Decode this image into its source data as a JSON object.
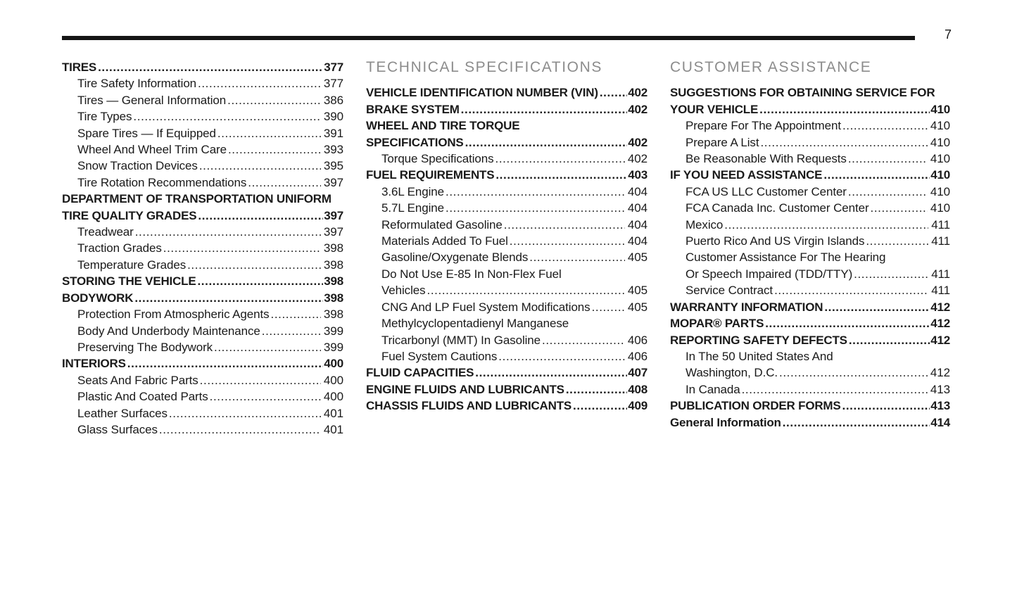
{
  "page": {
    "number": "7",
    "colors": {
      "text": "#1a1a1a",
      "rule": "#151515",
      "heading": "#8c8c8c",
      "background": "#ffffff"
    }
  },
  "columns": [
    {
      "heading": null,
      "entries": [
        {
          "lines": [
            "TIRES"
          ],
          "page": "377",
          "bold": true,
          "indent": 0
        },
        {
          "lines": [
            "Tire Safety Information"
          ],
          "page": "377",
          "bold": false,
          "indent": 1
        },
        {
          "lines": [
            "Tires — General Information"
          ],
          "page": "386",
          "bold": false,
          "indent": 1
        },
        {
          "lines": [
            "Tire Types"
          ],
          "page": "390",
          "bold": false,
          "indent": 1
        },
        {
          "lines": [
            "Spare Tires — If Equipped"
          ],
          "page": "391",
          "bold": false,
          "indent": 1
        },
        {
          "lines": [
            "Wheel And Wheel Trim Care"
          ],
          "page": "393",
          "bold": false,
          "indent": 1
        },
        {
          "lines": [
            "Snow Traction Devices"
          ],
          "page": "395",
          "bold": false,
          "indent": 1
        },
        {
          "lines": [
            "Tire Rotation Recommendations"
          ],
          "page": "397",
          "bold": false,
          "indent": 1
        },
        {
          "lines": [
            "DEPARTMENT OF TRANSPORTATION UNIFORM",
            "TIRE QUALITY GRADES"
          ],
          "page": "397",
          "bold": true,
          "indent": 0
        },
        {
          "lines": [
            "Treadwear"
          ],
          "page": "397",
          "bold": false,
          "indent": 1
        },
        {
          "lines": [
            "Traction Grades"
          ],
          "page": "398",
          "bold": false,
          "indent": 1
        },
        {
          "lines": [
            "Temperature Grades"
          ],
          "page": "398",
          "bold": false,
          "indent": 1
        },
        {
          "lines": [
            "STORING THE VEHICLE"
          ],
          "page": "398",
          "bold": true,
          "indent": 0
        },
        {
          "lines": [
            "BODYWORK"
          ],
          "page": "398",
          "bold": true,
          "indent": 0
        },
        {
          "lines": [
            "Protection From Atmospheric Agents"
          ],
          "page": "398",
          "bold": false,
          "indent": 1
        },
        {
          "lines": [
            "Body And Underbody Maintenance"
          ],
          "page": "399",
          "bold": false,
          "indent": 1
        },
        {
          "lines": [
            "Preserving The Bodywork"
          ],
          "page": "399",
          "bold": false,
          "indent": 1
        },
        {
          "lines": [
            "INTERIORS"
          ],
          "page": "400",
          "bold": true,
          "indent": 0
        },
        {
          "lines": [
            "Seats And Fabric Parts"
          ],
          "page": "400",
          "bold": false,
          "indent": 1
        },
        {
          "lines": [
            "Plastic And Coated Parts"
          ],
          "page": "400",
          "bold": false,
          "indent": 1
        },
        {
          "lines": [
            "Leather Surfaces"
          ],
          "page": "401",
          "bold": false,
          "indent": 1
        },
        {
          "lines": [
            "Glass Surfaces"
          ],
          "page": "401",
          "bold": false,
          "indent": 1
        }
      ]
    },
    {
      "heading": "TECHNICAL SPECIFICATIONS",
      "entries": [
        {
          "lines": [
            "VEHICLE IDENTIFICATION NUMBER (VIN)"
          ],
          "page": "402",
          "bold": true,
          "indent": 0
        },
        {
          "lines": [
            "BRAKE SYSTEM"
          ],
          "page": "402",
          "bold": true,
          "indent": 0
        },
        {
          "lines": [
            "WHEEL AND TIRE TORQUE",
            "SPECIFICATIONS"
          ],
          "page": "402",
          "bold": true,
          "indent": 0
        },
        {
          "lines": [
            "Torque Specifications"
          ],
          "page": "402",
          "bold": false,
          "indent": 1
        },
        {
          "lines": [
            "FUEL REQUIREMENTS"
          ],
          "page": "403",
          "bold": true,
          "indent": 0
        },
        {
          "lines": [
            "3.6L Engine"
          ],
          "page": "404",
          "bold": false,
          "indent": 1
        },
        {
          "lines": [
            "5.7L Engine"
          ],
          "page": "404",
          "bold": false,
          "indent": 1
        },
        {
          "lines": [
            "Reformulated Gasoline"
          ],
          "page": "404",
          "bold": false,
          "indent": 1
        },
        {
          "lines": [
            "Materials Added To Fuel"
          ],
          "page": "404",
          "bold": false,
          "indent": 1
        },
        {
          "lines": [
            "Gasoline/Oxygenate Blends"
          ],
          "page": "405",
          "bold": false,
          "indent": 1
        },
        {
          "lines": [
            "Do Not Use E-85 In Non-Flex Fuel",
            "Vehicles"
          ],
          "page": "405",
          "bold": false,
          "indent": 1
        },
        {
          "lines": [
            "CNG And LP Fuel System Modifications"
          ],
          "page": "405",
          "bold": false,
          "indent": 1
        },
        {
          "lines": [
            "Methylcyclopentadienyl Manganese",
            "Tricarbonyl (MMT) In Gasoline"
          ],
          "page": "406",
          "bold": false,
          "indent": 1
        },
        {
          "lines": [
            "Fuel System Cautions"
          ],
          "page": "406",
          "bold": false,
          "indent": 1
        },
        {
          "lines": [
            "FLUID CAPACITIES"
          ],
          "page": "407",
          "bold": true,
          "indent": 0
        },
        {
          "lines": [
            "ENGINE FLUIDS AND LUBRICANTS"
          ],
          "page": "408",
          "bold": true,
          "indent": 0
        },
        {
          "lines": [
            "CHASSIS FLUIDS AND LUBRICANTS"
          ],
          "page": "409",
          "bold": true,
          "indent": 0
        }
      ]
    },
    {
      "heading": "CUSTOMER ASSISTANCE",
      "entries": [
        {
          "lines": [
            "SUGGESTIONS FOR OBTAINING SERVICE FOR",
            "YOUR VEHICLE"
          ],
          "page": "410",
          "bold": true,
          "indent": 0
        },
        {
          "lines": [
            "Prepare For The Appointment"
          ],
          "page": "410",
          "bold": false,
          "indent": 1
        },
        {
          "lines": [
            "Prepare A List"
          ],
          "page": "410",
          "bold": false,
          "indent": 1
        },
        {
          "lines": [
            "Be Reasonable With Requests"
          ],
          "page": "410",
          "bold": false,
          "indent": 1
        },
        {
          "lines": [
            "IF YOU NEED ASSISTANCE"
          ],
          "page": "410",
          "bold": true,
          "indent": 0
        },
        {
          "lines": [
            "FCA US LLC Customer Center"
          ],
          "page": "410",
          "bold": false,
          "indent": 1
        },
        {
          "lines": [
            "FCA Canada Inc. Customer Center"
          ],
          "page": "410",
          "bold": false,
          "indent": 1
        },
        {
          "lines": [
            "Mexico"
          ],
          "page": "411",
          "bold": false,
          "indent": 1
        },
        {
          "lines": [
            "Puerto Rico And US Virgin Islands"
          ],
          "page": "411",
          "bold": false,
          "indent": 1
        },
        {
          "lines": [
            "Customer Assistance For The Hearing",
            "Or Speech Impaired (TDD/TTY)"
          ],
          "page": "411",
          "bold": false,
          "indent": 1
        },
        {
          "lines": [
            "Service Contract"
          ],
          "page": "411",
          "bold": false,
          "indent": 1
        },
        {
          "lines": [
            "WARRANTY INFORMATION"
          ],
          "page": "412",
          "bold": true,
          "indent": 0
        },
        {
          "lines": [
            "MOPAR® PARTS"
          ],
          "page": "412",
          "bold": true,
          "indent": 0
        },
        {
          "lines": [
            "REPORTING SAFETY DEFECTS"
          ],
          "page": "412",
          "bold": true,
          "indent": 0
        },
        {
          "lines": [
            "In The 50 United States And",
            "Washington, D.C."
          ],
          "page": "412",
          "bold": false,
          "indent": 1
        },
        {
          "lines": [
            "In Canada"
          ],
          "page": "413",
          "bold": false,
          "indent": 1
        },
        {
          "lines": [
            "PUBLICATION ORDER FORMS"
          ],
          "page": "413",
          "bold": true,
          "indent": 0
        },
        {
          "lines": [
            "General Information"
          ],
          "page": "414",
          "bold": true,
          "indent": 0
        }
      ]
    }
  ]
}
